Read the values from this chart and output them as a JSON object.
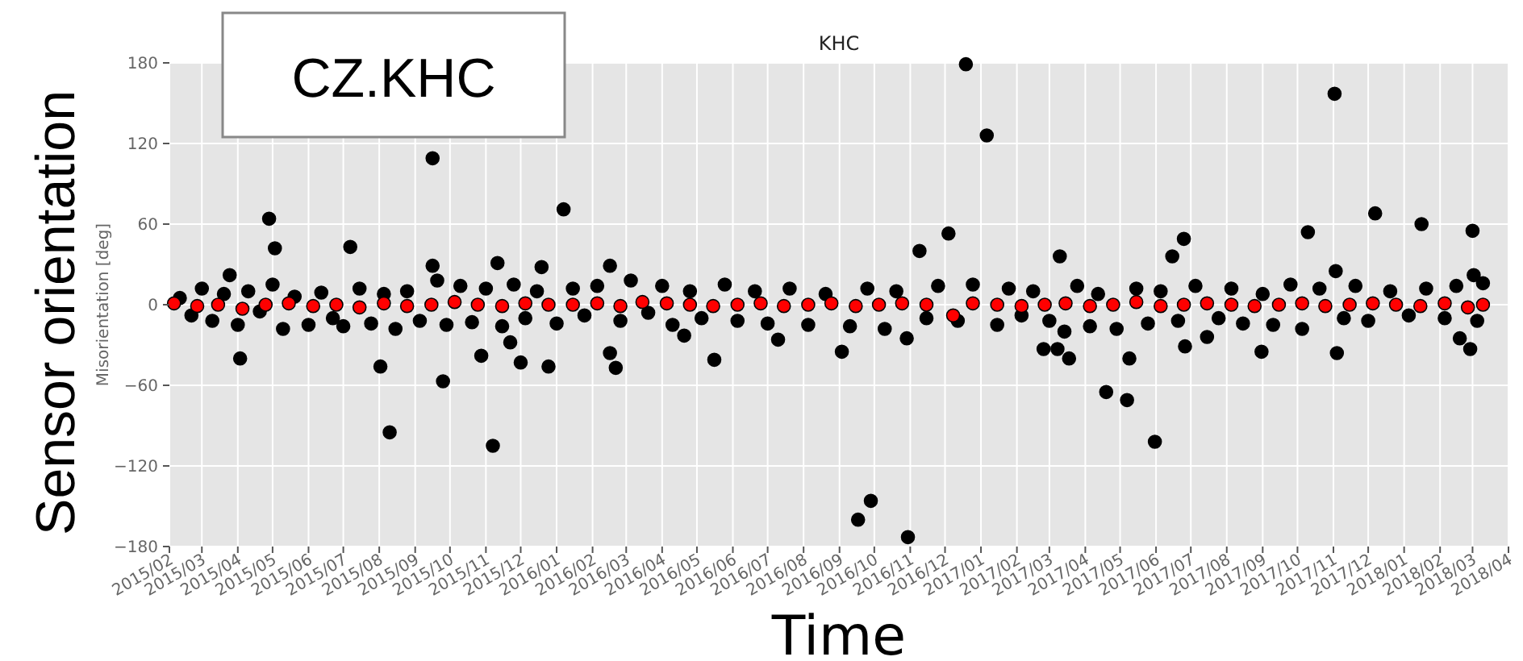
{
  "chart_data": {
    "type": "scatter",
    "title": "KHC",
    "xlabel": "Time",
    "ylabel": "Misorientation [deg]",
    "annotations": [
      "CZ.KHC",
      "Sensor orientation"
    ],
    "xlim": [
      "2015-02-01",
      "2018-04-01"
    ],
    "xticks": [
      {
        "value": "2015-02-01",
        "label": "2015/02"
      },
      {
        "value": "2015-03-01",
        "label": "2015/03"
      },
      {
        "value": "2015-04-01",
        "label": "2015/04"
      },
      {
        "value": "2015-05-01",
        "label": "2015/05"
      },
      {
        "value": "2015-06-01",
        "label": "2015/06"
      },
      {
        "value": "2015-07-01",
        "label": "2015/07"
      },
      {
        "value": "2015-08-01",
        "label": "2015/08"
      },
      {
        "value": "2015-09-01",
        "label": "2015/09"
      },
      {
        "value": "2015-10-01",
        "label": "2015/10"
      },
      {
        "value": "2015-11-01",
        "label": "2015/11"
      },
      {
        "value": "2015-12-01",
        "label": "2015/12"
      },
      {
        "value": "2016-01-01",
        "label": "2016/01"
      },
      {
        "value": "2016-02-01",
        "label": "2016/02"
      },
      {
        "value": "2016-03-01",
        "label": "2016/03"
      },
      {
        "value": "2016-04-01",
        "label": "2016/04"
      },
      {
        "value": "2016-05-01",
        "label": "2016/05"
      },
      {
        "value": "2016-06-01",
        "label": "2016/06"
      },
      {
        "value": "2016-07-01",
        "label": "2016/07"
      },
      {
        "value": "2016-08-01",
        "label": "2016/08"
      },
      {
        "value": "2016-09-01",
        "label": "2016/09"
      },
      {
        "value": "2016-10-01",
        "label": "2016/10"
      },
      {
        "value": "2016-11-01",
        "label": "2016/11"
      },
      {
        "value": "2016-12-01",
        "label": "2016/12"
      },
      {
        "value": "2017-01-01",
        "label": "2017/01"
      },
      {
        "value": "2017-02-01",
        "label": "2017/02"
      },
      {
        "value": "2017-03-01",
        "label": "2017/03"
      },
      {
        "value": "2017-04-01",
        "label": "2017/04"
      },
      {
        "value": "2017-05-01",
        "label": "2017/05"
      },
      {
        "value": "2017-06-01",
        "label": "2017/06"
      },
      {
        "value": "2017-07-01",
        "label": "2017/07"
      },
      {
        "value": "2017-08-01",
        "label": "2017/08"
      },
      {
        "value": "2017-09-01",
        "label": "2017/09"
      },
      {
        "value": "2017-10-01",
        "label": "2017/10"
      },
      {
        "value": "2017-11-01",
        "label": "2017/11"
      },
      {
        "value": "2017-12-01",
        "label": "2017/12"
      },
      {
        "value": "2018-01-01",
        "label": "2018/01"
      },
      {
        "value": "2018-02-01",
        "label": "2018/02"
      },
      {
        "value": "2018-03-01",
        "label": "2018/03"
      },
      {
        "value": "2018-04-01",
        "label": "2018/04"
      }
    ],
    "ylim": [
      -180,
      180
    ],
    "yticks": [
      -180,
      -120,
      -60,
      0,
      60,
      120,
      180
    ],
    "grid": true,
    "marker": "circle",
    "series": [
      {
        "color": "#000000",
        "x": [
          "2015-09-16",
          "2015-04-28",
          "2015-05-03",
          "2015-07-07",
          "2016-01-07",
          "2015-09-16",
          "2015-11-11",
          "2015-12-19",
          "2016-02-16",
          "2015-03-25",
          "2016-12-19",
          "2017-01-06",
          "2017-11-02",
          "2016-11-09",
          "2016-12-04",
          "2017-03-10",
          "2017-06-25",
          "2017-06-15",
          "2017-10-10",
          "2017-12-07",
          "2018-01-16",
          "2018-03-01",
          "2017-11-03",
          "2018-03-02",
          "2015-04-03",
          "2015-08-02",
          "2015-08-10",
          "2015-09-25",
          "2015-10-28",
          "2015-11-07",
          "2015-12-01",
          "2015-12-25",
          "2016-02-16",
          "2016-02-21",
          "2016-05-16",
          "2015-11-22",
          "2016-04-20",
          "2016-07-10",
          "2016-09-03",
          "2016-09-17",
          "2016-09-28",
          "2016-10-30",
          "2016-10-29",
          "2017-02-24",
          "2017-03-08",
          "2017-03-18",
          "2017-04-19",
          "2017-05-07",
          "2017-05-31",
          "2017-05-09",
          "2017-06-26",
          "2017-07-15",
          "2017-08-31",
          "2017-11-04",
          "2018-02-18",
          "2018-02-27",
          "2017-03-14",
          "2015-02-10",
          "2015-02-20",
          "2015-03-01",
          "2015-03-10",
          "2015-03-20",
          "2015-04-01",
          "2015-04-10",
          "2015-04-20",
          "2015-05-01",
          "2015-05-10",
          "2015-05-20",
          "2015-06-01",
          "2015-06-12",
          "2015-06-22",
          "2015-07-01",
          "2015-07-15",
          "2015-07-25",
          "2015-08-05",
          "2015-08-15",
          "2015-08-25",
          "2015-09-05",
          "2015-09-20",
          "2015-09-28",
          "2015-10-10",
          "2015-10-20",
          "2015-11-01",
          "2015-11-15",
          "2015-11-25",
          "2015-12-05",
          "2015-12-15",
          "2016-01-01",
          "2016-01-15",
          "2016-01-25",
          "2016-02-05",
          "2016-02-25",
          "2016-03-05",
          "2016-03-20",
          "2016-04-01",
          "2016-04-10",
          "2016-04-25",
          "2016-05-05",
          "2016-05-25",
          "2016-06-05",
          "2016-06-20",
          "2016-07-01",
          "2016-07-20",
          "2016-08-05",
          "2016-08-20",
          "2016-09-10",
          "2016-09-25",
          "2016-10-10",
          "2016-10-20",
          "2016-11-15",
          "2016-11-25",
          "2016-12-12",
          "2016-12-25",
          "2017-01-15",
          "2017-01-25",
          "2017-02-05",
          "2017-02-15",
          "2017-03-01",
          "2017-03-25",
          "2017-04-05",
          "2017-04-12",
          "2017-04-28",
          "2017-05-15",
          "2017-05-25",
          "2017-06-05",
          "2017-06-20",
          "2017-07-05",
          "2017-07-25",
          "2017-08-05",
          "2017-08-15",
          "2017-09-01",
          "2017-09-10",
          "2017-09-25",
          "2017-10-05",
          "2017-10-20",
          "2017-11-10",
          "2017-11-20",
          "2017-12-01",
          "2017-12-20",
          "2018-01-05",
          "2018-01-20",
          "2018-02-05",
          "2018-02-15",
          "2018-03-05",
          "2018-03-10"
        ],
        "values": [
          109,
          64,
          42,
          43,
          71,
          29,
          31,
          28,
          29,
          22,
          179,
          126,
          157,
          40,
          53,
          36,
          49,
          36,
          54,
          68,
          60,
          55,
          25,
          22,
          -40,
          -46,
          -95,
          -57,
          -38,
          -105,
          -43,
          -46,
          -36,
          -47,
          -41,
          -28,
          -23,
          -26,
          -35,
          -160,
          -146,
          -173,
          -25,
          -33,
          -33,
          -40,
          -65,
          -71,
          -102,
          -40,
          -31,
          -24,
          -35,
          -36,
          -25,
          -33,
          -20,
          5,
          -8,
          12,
          -12,
          8,
          -15,
          10,
          -5,
          15,
          -18,
          6,
          -15,
          9,
          -10,
          -16,
          12,
          -14,
          8,
          -18,
          10,
          -12,
          18,
          -15,
          14,
          -13,
          12,
          -16,
          15,
          -10,
          10,
          -14,
          12,
          -8,
          14,
          -12,
          18,
          -6,
          14,
          -15,
          10,
          -10,
          15,
          -12,
          10,
          -14,
          12,
          -15,
          8,
          -16,
          12,
          -18,
          10,
          -10,
          14,
          -12,
          15,
          -15,
          12,
          -8,
          10,
          -12,
          14,
          -16,
          8,
          -18,
          12,
          -14,
          10,
          -12,
          14,
          -10,
          12,
          -14,
          8,
          -15,
          15,
          -18,
          12,
          -10,
          14,
          -12,
          10,
          -8,
          12,
          -10,
          14,
          -12,
          16
        ]
      },
      {
        "color": "#ff0000",
        "x": [
          "2015-02-05",
          "2015-02-25",
          "2015-03-15",
          "2015-04-05",
          "2015-04-25",
          "2015-05-15",
          "2015-06-05",
          "2015-06-25",
          "2015-07-15",
          "2015-08-05",
          "2015-08-25",
          "2015-09-15",
          "2015-10-05",
          "2015-10-25",
          "2015-11-15",
          "2015-12-05",
          "2015-12-25",
          "2016-01-15",
          "2016-02-05",
          "2016-02-25",
          "2016-03-15",
          "2016-04-05",
          "2016-04-25",
          "2016-05-15",
          "2016-06-05",
          "2016-06-25",
          "2016-07-15",
          "2016-08-05",
          "2016-08-25",
          "2016-09-15",
          "2016-10-05",
          "2016-10-25",
          "2016-11-15",
          "2016-12-08",
          "2016-12-25",
          "2017-01-15",
          "2017-02-05",
          "2017-02-25",
          "2017-03-15",
          "2017-04-05",
          "2017-04-25",
          "2017-05-15",
          "2017-06-05",
          "2017-06-25",
          "2017-07-15",
          "2017-08-05",
          "2017-08-25",
          "2017-09-15",
          "2017-10-05",
          "2017-10-25",
          "2017-11-15",
          "2017-12-05",
          "2017-12-25",
          "2018-01-15",
          "2018-02-05",
          "2018-02-25",
          "2018-03-10"
        ],
        "values": [
          1,
          -1,
          0,
          -3,
          0,
          1,
          -1,
          0,
          -2,
          1,
          -1,
          0,
          2,
          0,
          -1,
          1,
          0,
          0,
          1,
          -1,
          2,
          1,
          0,
          -1,
          0,
          1,
          -1,
          0,
          1,
          -1,
          0,
          1,
          0,
          -8,
          1,
          0,
          -1,
          0,
          1,
          -1,
          0,
          2,
          -1,
          0,
          1,
          0,
          -1,
          0,
          1,
          -1,
          0,
          1,
          0,
          -1,
          1,
          -2,
          0
        ]
      }
    ]
  }
}
